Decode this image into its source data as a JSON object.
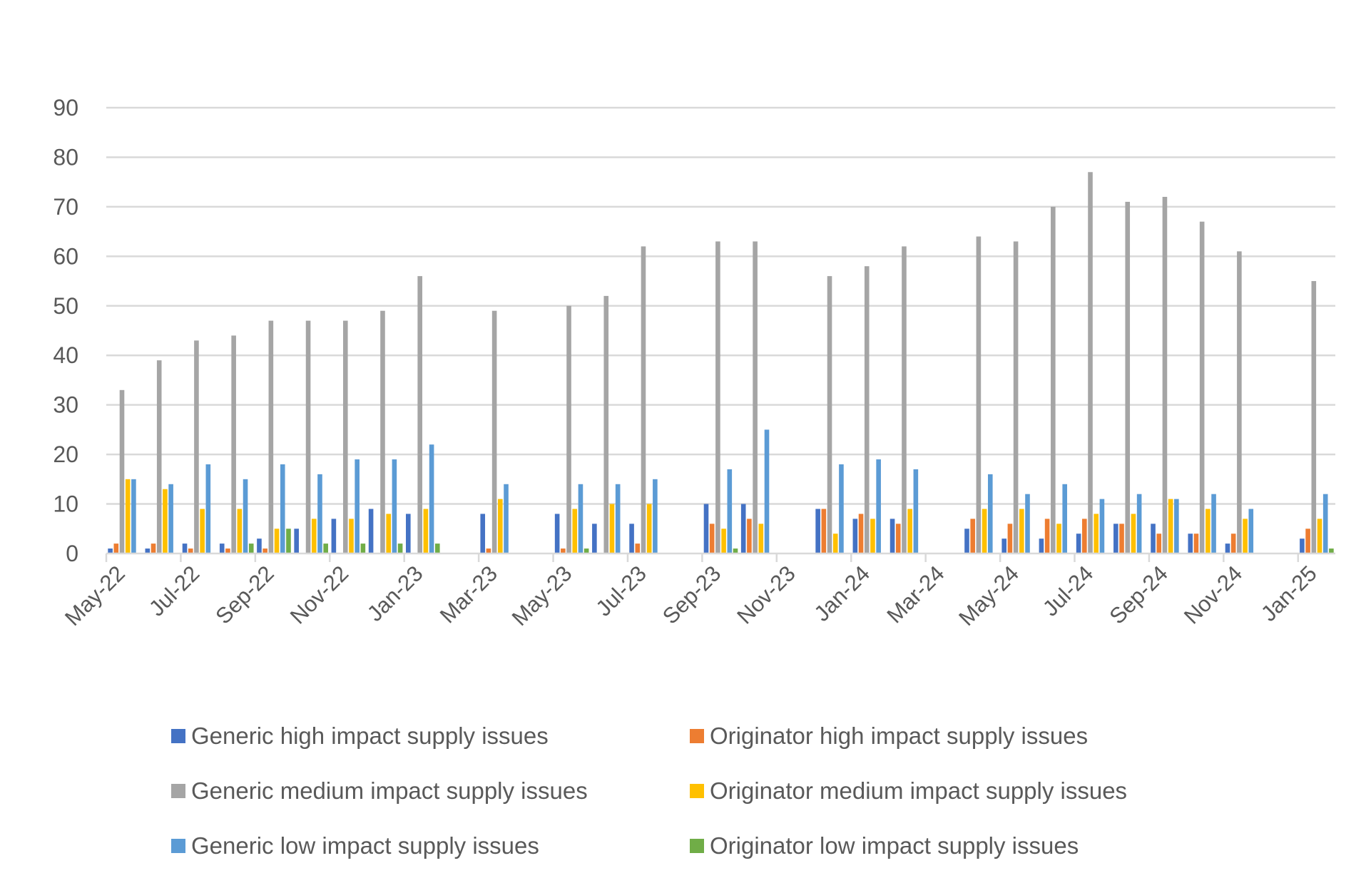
{
  "chart_data": {
    "type": "bar",
    "title": "",
    "xlabel": "",
    "ylabel": "",
    "ylim": [
      0,
      90
    ],
    "yticks": [
      "0",
      "10",
      "20",
      "30",
      "40",
      "50",
      "60",
      "70",
      "80",
      "90"
    ],
    "grid": true,
    "legend_position": "bottom",
    "categories": [
      "May-22",
      "Jun-22",
      "Jul-22",
      "Aug-22",
      "Sep-22",
      "Oct-22",
      "Nov-22",
      "Dec-22",
      "Jan-23",
      "Feb-23",
      "Mar-23",
      "Apr-23",
      "May-23",
      "Jun-23",
      "Jul-23",
      "Aug-23",
      "Sep-23",
      "Oct-23",
      "Nov-23",
      "Dec-23",
      "Jan-24",
      "Feb-24",
      "Mar-24",
      "Apr-24",
      "May-24",
      "Jun-24",
      "Jul-24",
      "Aug-24",
      "Sep-24",
      "Oct-24",
      "Nov-24",
      "Dec-24",
      "Jan-25"
    ],
    "xtick_labels": [
      "May-22",
      "Jul-22",
      "Sep-22",
      "Nov-22",
      "Jan-23",
      "Mar-23",
      "May-23",
      "Jul-23",
      "Sep-23",
      "Nov-23",
      "Jan-24",
      "Mar-24",
      "May-24",
      "Jul-24",
      "Sep-24",
      "Nov-24",
      "Jan-25"
    ],
    "series": [
      {
        "name": "Generic high impact supply issues",
        "color": "#4472C4",
        "values": [
          1,
          1,
          2,
          2,
          3,
          5,
          7,
          9,
          8,
          0,
          8,
          0,
          8,
          6,
          6,
          0,
          10,
          10,
          0,
          9,
          7,
          7,
          0,
          5,
          3,
          3,
          4,
          6,
          6,
          4,
          2,
          0,
          3
        ]
      },
      {
        "name": "Originator high impact supply issues",
        "color": "#ED7D31",
        "values": [
          2,
          2,
          1,
          1,
          1,
          0,
          0,
          0,
          0,
          0,
          1,
          0,
          1,
          0,
          2,
          0,
          6,
          7,
          0,
          9,
          8,
          6,
          0,
          7,
          6,
          7,
          7,
          6,
          4,
          4,
          4,
          0,
          5
        ]
      },
      {
        "name": "Generic medium impact supply issues",
        "color": "#A5A5A5",
        "values": [
          33,
          39,
          43,
          44,
          47,
          47,
          47,
          49,
          56,
          0,
          49,
          0,
          50,
          52,
          62,
          0,
          63,
          63,
          0,
          56,
          58,
          62,
          0,
          64,
          63,
          70,
          77,
          71,
          72,
          67,
          61,
          0,
          55
        ]
      },
      {
        "name": "Originator medium impact supply issues",
        "color": "#FFC000",
        "values": [
          15,
          13,
          9,
          9,
          5,
          7,
          7,
          8,
          9,
          0,
          11,
          0,
          9,
          10,
          10,
          0,
          5,
          6,
          0,
          4,
          7,
          9,
          0,
          9,
          9,
          6,
          8,
          8,
          11,
          9,
          7,
          0,
          7
        ]
      },
      {
        "name": "Generic low impact supply issues",
        "color": "#5B9BD5",
        "values": [
          15,
          14,
          18,
          15,
          18,
          16,
          19,
          19,
          22,
          0,
          14,
          0,
          14,
          14,
          15,
          0,
          17,
          25,
          0,
          18,
          19,
          17,
          0,
          16,
          12,
          14,
          11,
          12,
          11,
          12,
          9,
          0,
          12
        ]
      },
      {
        "name": "Originator low impact supply issues",
        "color": "#70AD47",
        "values": [
          0,
          0,
          0,
          2,
          5,
          2,
          2,
          2,
          2,
          0,
          0,
          0,
          1,
          0,
          0,
          0,
          1,
          0,
          0,
          0,
          0,
          0,
          0,
          0,
          0,
          0,
          0,
          0,
          0,
          0,
          0,
          0,
          1
        ]
      }
    ]
  },
  "legend": {
    "items": [
      {
        "label": "Generic high impact supply issues",
        "color": "#4472C4"
      },
      {
        "label": "Originator high impact supply issues",
        "color": "#ED7D31"
      },
      {
        "label": "Generic medium impact supply issues",
        "color": "#A5A5A5"
      },
      {
        "label": "Originator medium impact supply issues",
        "color": "#FFC000"
      },
      {
        "label": "Generic low impact supply issues",
        "color": "#5B9BD5"
      },
      {
        "label": "Originator low impact supply issues",
        "color": "#70AD47"
      }
    ]
  },
  "colors": {
    "gridline": "#D9D9D9",
    "axis_text": "#595959"
  }
}
